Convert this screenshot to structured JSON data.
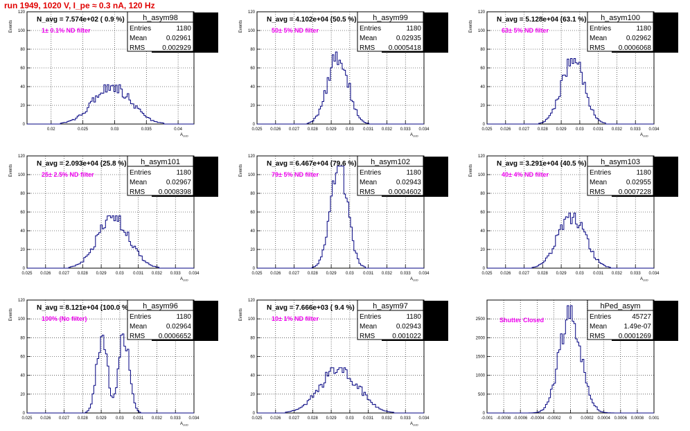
{
  "page_title": "run 1949,  1020 V, I_pe ≈ 0.3 nA, 120 Hz",
  "stats_labels": {
    "entries": "Entries",
    "mean": "Mean",
    "rms": "RMS"
  },
  "chart_data": [
    {
      "type": "histogram",
      "name": "h_asym98",
      "annotation": "N_avg = 7.574e+02 ( 0.9 %)",
      "filter_label": "1± 0.1% ND filter",
      "xlabel": "A",
      "xlabel_sub": "LED",
      "ylabel": "Events",
      "xlim": [
        0.0162,
        0.0425
      ],
      "xticks": [
        0.02,
        0.025,
        0.03,
        0.035,
        0.04
      ],
      "xticklabels": [
        "0.02",
        "0.025",
        "0.03",
        "0.035",
        "0.04"
      ],
      "ylim": [
        0,
        120
      ],
      "yticks": [
        0,
        20,
        40,
        60,
        80,
        100,
        120
      ],
      "stats": {
        "entries": "1180",
        "mean": "0.02961",
        "rms": "0.002929"
      },
      "mean": 0.02961,
      "rms": 0.002929,
      "peak": 42,
      "shape": "gauss"
    },
    {
      "type": "histogram",
      "name": "h_asym99",
      "annotation": "N_avg = 4.102e+04 (50.5 %)",
      "filter_label": "50± 5% ND filter",
      "xlabel": "A",
      "xlabel_sub": "LED",
      "ylabel": "Events",
      "xlim": [
        0.025,
        0.034
      ],
      "xticks": [
        0.025,
        0.026,
        0.027,
        0.028,
        0.029,
        0.03,
        0.031,
        0.032,
        0.033,
        0.034
      ],
      "xticklabels": [
        "0.025",
        "0.026",
        "0.027",
        "0.028",
        "0.029",
        "0.03",
        "0.031",
        "0.032",
        "0.033",
        "0.034"
      ],
      "ylim": [
        0,
        120
      ],
      "yticks": [
        0,
        20,
        40,
        60,
        80,
        100,
        120
      ],
      "stats": {
        "entries": "1180",
        "mean": "0.02935",
        "rms": "0.0005418"
      },
      "mean": 0.02935,
      "rms": 0.0005418,
      "peak": 77,
      "shape": "gauss"
    },
    {
      "type": "histogram",
      "name": "h_asym100",
      "annotation": "N_avg = 5.128e+04 (63.1 %)",
      "filter_label": "63± 5% ND filter",
      "xlabel": "A",
      "xlabel_sub": "LED",
      "ylabel": "Events",
      "xlim": [
        0.025,
        0.034
      ],
      "xticks": [
        0.025,
        0.026,
        0.027,
        0.028,
        0.029,
        0.03,
        0.031,
        0.032,
        0.033,
        0.034
      ],
      "xticklabels": [
        "0.025",
        "0.026",
        "0.027",
        "0.028",
        "0.029",
        "0.03",
        "0.031",
        "0.032",
        "0.033",
        "0.034"
      ],
      "ylim": [
        0,
        120
      ],
      "yticks": [
        0,
        20,
        40,
        60,
        80,
        100,
        120
      ],
      "stats": {
        "entries": "1180",
        "mean": "0.02962",
        "rms": "0.0006068"
      },
      "mean": 0.02962,
      "rms": 0.0006068,
      "peak": 70,
      "shape": "gauss"
    },
    {
      "type": "histogram",
      "name": "h_asym101",
      "annotation": "N_avg = 2.093e+04 (25.8 %)",
      "filter_label": "25± 2.5% ND filter",
      "xlabel": "A",
      "xlabel_sub": "LED",
      "ylabel": "Events",
      "xlim": [
        0.025,
        0.034
      ],
      "xticks": [
        0.025,
        0.026,
        0.027,
        0.028,
        0.029,
        0.03,
        0.031,
        0.032,
        0.033,
        0.034
      ],
      "xticklabels": [
        "0.025",
        "0.026",
        "0.027",
        "0.028",
        "0.029",
        "0.03",
        "0.031",
        "0.032",
        "0.033",
        "0.034"
      ],
      "ylim": [
        0,
        120
      ],
      "yticks": [
        0,
        20,
        40,
        60,
        80,
        100,
        120
      ],
      "stats": {
        "entries": "1180",
        "mean": "0.02967",
        "rms": "0.0008398"
      },
      "mean": 0.02967,
      "rms": 0.0008398,
      "peak": 56,
      "shape": "gauss"
    },
    {
      "type": "histogram",
      "name": "h_asym102",
      "annotation": "N_avg = 6.467e+04 (79.6 %)",
      "filter_label": "79± 5% ND filter",
      "xlabel": "A",
      "xlabel_sub": "LED",
      "ylabel": "Events",
      "xlim": [
        0.025,
        0.034
      ],
      "xticks": [
        0.025,
        0.026,
        0.027,
        0.028,
        0.029,
        0.03,
        0.031,
        0.032,
        0.033,
        0.034
      ],
      "xticklabels": [
        "0.025",
        "0.026",
        "0.027",
        "0.028",
        "0.029",
        "0.03",
        "0.031",
        "0.032",
        "0.033",
        "0.034"
      ],
      "ylim": [
        0,
        120
      ],
      "yticks": [
        0,
        20,
        40,
        60,
        80,
        100,
        120
      ],
      "stats": {
        "entries": "1180",
        "mean": "0.02943",
        "rms": "0.0004602"
      },
      "mean": 0.02943,
      "rms": 0.0004602,
      "peak": 109,
      "shape": "gauss"
    },
    {
      "type": "histogram",
      "name": "h_asym103",
      "annotation": "N_avg = 3.291e+04 (40.5 %)",
      "filter_label": "40± 4% ND filter",
      "xlabel": "A",
      "xlabel_sub": "LED",
      "ylabel": "Events",
      "xlim": [
        0.025,
        0.034
      ],
      "xticks": [
        0.025,
        0.026,
        0.027,
        0.028,
        0.029,
        0.03,
        0.031,
        0.032,
        0.033,
        0.034
      ],
      "xticklabels": [
        "0.025",
        "0.026",
        "0.027",
        "0.028",
        "0.029",
        "0.03",
        "0.031",
        "0.032",
        "0.033",
        "0.034"
      ],
      "ylim": [
        0,
        120
      ],
      "yticks": [
        0,
        20,
        40,
        60,
        80,
        100,
        120
      ],
      "stats": {
        "entries": "1180",
        "mean": "0.02955",
        "rms": "0.0007228"
      },
      "mean": 0.02955,
      "rms": 0.0007228,
      "peak": 59,
      "shape": "gauss"
    },
    {
      "type": "histogram",
      "name": "h_asym96",
      "annotation": "N_avg = 8.121e+04 (100.0 %)",
      "filter_label": "100% (No filter)",
      "xlabel": "A",
      "xlabel_sub": "LED",
      "ylabel": "Events",
      "xlim": [
        0.025,
        0.034
      ],
      "xticks": [
        0.025,
        0.026,
        0.027,
        0.028,
        0.029,
        0.03,
        0.031,
        0.032,
        0.033,
        0.034
      ],
      "xticklabels": [
        "0.025",
        "0.026",
        "0.027",
        "0.028",
        "0.029",
        "0.03",
        "0.031",
        "0.032",
        "0.033",
        "0.034"
      ],
      "ylim": [
        0,
        120
      ],
      "yticks": [
        0,
        20,
        40,
        60,
        80,
        100,
        120
      ],
      "stats": {
        "entries": "1180",
        "mean": "0.02964",
        "rms": "0.0006652"
      },
      "mean": 0.02964,
      "rms": 0.0006652,
      "peak": 84,
      "shape": "bimodal"
    },
    {
      "type": "histogram",
      "name": "h_asym97",
      "annotation": "N_avg = 7.666e+03 ( 9.4 %)",
      "filter_label": "10± 1% ND filter",
      "xlabel": "A",
      "xlabel_sub": "LED",
      "ylabel": "Events",
      "xlim": [
        0.025,
        0.034
      ],
      "xticks": [
        0.025,
        0.026,
        0.027,
        0.028,
        0.029,
        0.03,
        0.031,
        0.032,
        0.033,
        0.034
      ],
      "xticklabels": [
        "0.025",
        "0.026",
        "0.027",
        "0.028",
        "0.029",
        "0.03",
        "0.031",
        "0.032",
        "0.033",
        "0.034"
      ],
      "ylim": [
        0,
        120
      ],
      "yticks": [
        0,
        20,
        40,
        60,
        80,
        100,
        120
      ],
      "stats": {
        "entries": "1180",
        "mean": "0.02943",
        "rms": "0.001022"
      },
      "mean": 0.02943,
      "rms": 0.001022,
      "peak": 48,
      "shape": "gauss"
    },
    {
      "type": "histogram",
      "name": "hPed_asym",
      "annotation": "",
      "filter_label": "Shutter Closed",
      "xlabel": "",
      "xlabel_sub": "",
      "ylabel": "",
      "xlim": [
        -0.001,
        0.001
      ],
      "xticks": [
        -0.001,
        -0.0008,
        -0.0006,
        -0.0004,
        -0.0002,
        0,
        0.0002,
        0.0004,
        0.0006,
        0.0008,
        0.001
      ],
      "xticklabels": [
        "-0.001",
        "-0.0008",
        "-0.0006",
        "-0.0004",
        "-0.0002",
        "0",
        "0.0002",
        "0.0004",
        "0.0006",
        "0.0008",
        "0.001"
      ],
      "ylim": [
        0,
        3000
      ],
      "yticks": [
        0,
        500,
        1000,
        1500,
        2000,
        2500
      ],
      "stats": {
        "entries": "45727",
        "mean": "1.49e-07",
        "rms": "0.0001269"
      },
      "mean": 1.49e-07,
      "rms": 0.0001269,
      "peak": 2850,
      "shape": "gauss"
    }
  ]
}
